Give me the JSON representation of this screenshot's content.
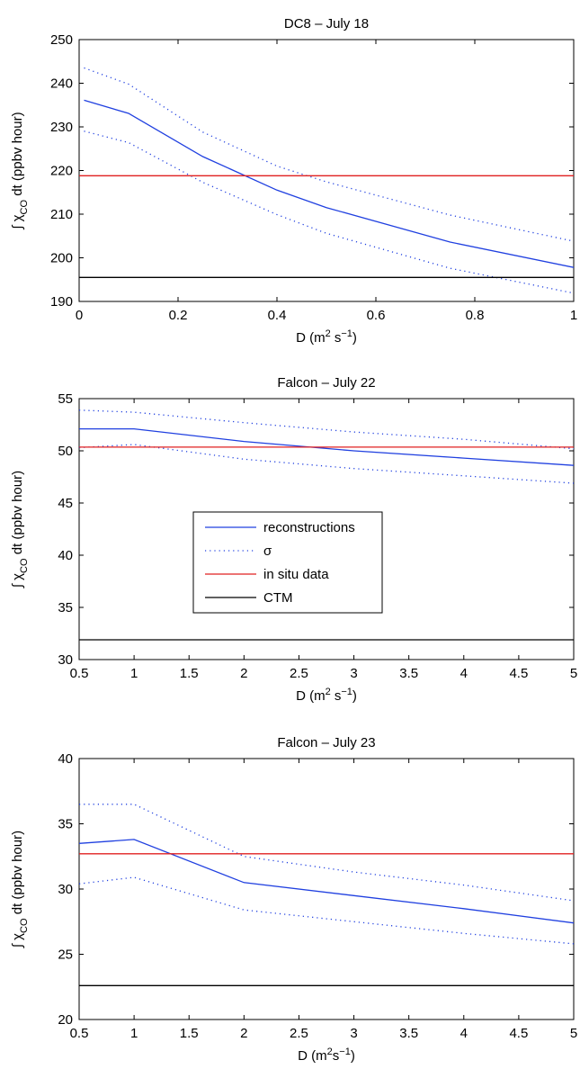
{
  "chart_data": [
    {
      "type": "line",
      "title": "DC8 – July 18",
      "xlabel": "D (m² s⁻¹)",
      "ylabel": "∫ χCO dt (ppbv hour)",
      "xlim": [
        0,
        1
      ],
      "ylim": [
        190,
        250
      ],
      "xticks": [
        0,
        0.2,
        0.4,
        0.6,
        0.8,
        1
      ],
      "xtick_labels": [
        "0",
        "0.2",
        "0.4",
        "0.6",
        "0.8",
        "1"
      ],
      "yticks": [
        190,
        200,
        210,
        220,
        230,
        240,
        250
      ],
      "ytick_labels": [
        "190",
        "200",
        "210",
        "220",
        "230",
        "240",
        "250"
      ],
      "grid": false,
      "series": [
        {
          "name": "reconstructions",
          "style": "solid",
          "color": "#2040e0",
          "x": [
            0.01,
            0.1,
            0.25,
            0.4,
            0.5,
            0.75,
            1.0
          ],
          "y": [
            236.1,
            233.1,
            223.2,
            215.5,
            211.5,
            203.6,
            197.8
          ]
        },
        {
          "name": "σ",
          "style": "dotted",
          "color": "#2040e0",
          "x": [
            0.01,
            0.1,
            0.25,
            0.4,
            0.5,
            0.75,
            1.0
          ],
          "y": [
            243.5,
            239.8,
            228.8,
            221.0,
            217.4,
            209.8,
            203.8
          ]
        },
        {
          "name": "σ",
          "style": "dotted",
          "color": "#2040e0",
          "x": [
            0.01,
            0.1,
            0.25,
            0.4,
            0.5,
            0.75,
            1.0
          ],
          "y": [
            229.0,
            226.4,
            217.3,
            209.9,
            205.6,
            197.6,
            191.9
          ]
        },
        {
          "name": "in situ data",
          "style": "solid",
          "color": "#e02020",
          "x": [
            0,
            1
          ],
          "y": [
            218.8,
            218.8
          ]
        },
        {
          "name": "CTM",
          "style": "solid",
          "color": "#000000",
          "x": [
            0,
            1
          ],
          "y": [
            195.5,
            195.5
          ]
        }
      ]
    },
    {
      "type": "line",
      "title": "Falcon – July 22",
      "xlabel": "D (m² s⁻¹)",
      "ylabel": "∫ χCO dt (ppbv hour)",
      "xlim": [
        0.5,
        5
      ],
      "ylim": [
        30,
        55
      ],
      "xticks": [
        0.5,
        1,
        1.5,
        2,
        2.5,
        3,
        3.5,
        4,
        4.5,
        5
      ],
      "xtick_labels": [
        "0.5",
        "1",
        "1.5",
        "2",
        "2.5",
        "3",
        "3.5",
        "4",
        "4.5",
        "5"
      ],
      "yticks": [
        30,
        35,
        40,
        45,
        50,
        55
      ],
      "ytick_labels": [
        "30",
        "35",
        "40",
        "45",
        "50",
        "55"
      ],
      "grid": false,
      "legend": {
        "placement": "center-left",
        "entries": [
          {
            "label": "reconstructions",
            "style": "solid",
            "color": "#2040e0"
          },
          {
            "label": "σ",
            "style": "dotted",
            "color": "#2040e0"
          },
          {
            "label": "in situ data",
            "style": "solid",
            "color": "#e02020"
          },
          {
            "label": "CTM",
            "style": "solid",
            "color": "#000000"
          }
        ]
      },
      "series": [
        {
          "name": "reconstructions",
          "style": "solid",
          "color": "#2040e0",
          "x": [
            0.5,
            1,
            2,
            3,
            4,
            5
          ],
          "y": [
            52.1,
            52.1,
            50.9,
            50.0,
            49.3,
            48.6
          ]
        },
        {
          "name": "σ",
          "style": "dotted",
          "color": "#2040e0",
          "x": [
            0.5,
            1,
            2,
            3,
            4,
            5
          ],
          "y": [
            53.9,
            53.7,
            52.7,
            51.8,
            51.1,
            50.2
          ]
        },
        {
          "name": "σ",
          "style": "dotted",
          "color": "#2040e0",
          "x": [
            0.5,
            1,
            2,
            3,
            4,
            5
          ],
          "y": [
            50.3,
            50.6,
            49.2,
            48.3,
            47.6,
            46.9
          ]
        },
        {
          "name": "in situ data",
          "style": "solid",
          "color": "#e02020",
          "x": [
            0.5,
            5
          ],
          "y": [
            50.35,
            50.35
          ]
        },
        {
          "name": "CTM",
          "style": "solid",
          "color": "#000000",
          "x": [
            0.5,
            5
          ],
          "y": [
            31.9,
            31.9
          ]
        }
      ]
    },
    {
      "type": "line",
      "title": "Falcon – July 23",
      "xlabel": "D (m²s⁻¹)",
      "ylabel": "∫ χCO dt (ppbv hour)",
      "xlim": [
        0.5,
        5
      ],
      "ylim": [
        20,
        40
      ],
      "xticks": [
        0.5,
        1,
        1.5,
        2,
        2.5,
        3,
        3.5,
        4,
        4.5,
        5
      ],
      "xtick_labels": [
        "0.5",
        "1",
        "1.5",
        "2",
        "2.5",
        "3",
        "3.5",
        "4",
        "4.5",
        "5"
      ],
      "yticks": [
        20,
        25,
        30,
        35,
        40
      ],
      "ytick_labels": [
        "20",
        "25",
        "30",
        "35",
        "40"
      ],
      "grid": false,
      "series": [
        {
          "name": "reconstructions",
          "style": "solid",
          "color": "#2040e0",
          "x": [
            0.5,
            1,
            2,
            3,
            4,
            5
          ],
          "y": [
            33.5,
            33.8,
            30.5,
            29.5,
            28.5,
            27.4
          ]
        },
        {
          "name": "σ",
          "style": "dotted",
          "color": "#2040e0",
          "x": [
            0.5,
            1,
            2,
            3,
            4,
            5
          ],
          "y": [
            36.5,
            36.5,
            32.5,
            31.3,
            30.3,
            29.1
          ]
        },
        {
          "name": "σ",
          "style": "dotted",
          "color": "#2040e0",
          "x": [
            0.5,
            1,
            2,
            3,
            4,
            5
          ],
          "y": [
            30.4,
            30.9,
            28.4,
            27.5,
            26.6,
            25.8
          ]
        },
        {
          "name": "in situ data",
          "style": "solid",
          "color": "#e02020",
          "x": [
            0.5,
            5
          ],
          "y": [
            32.7,
            32.7
          ]
        },
        {
          "name": "CTM",
          "style": "solid",
          "color": "#000000",
          "x": [
            0.5,
            5
          ],
          "y": [
            22.6,
            22.6
          ]
        }
      ]
    }
  ]
}
